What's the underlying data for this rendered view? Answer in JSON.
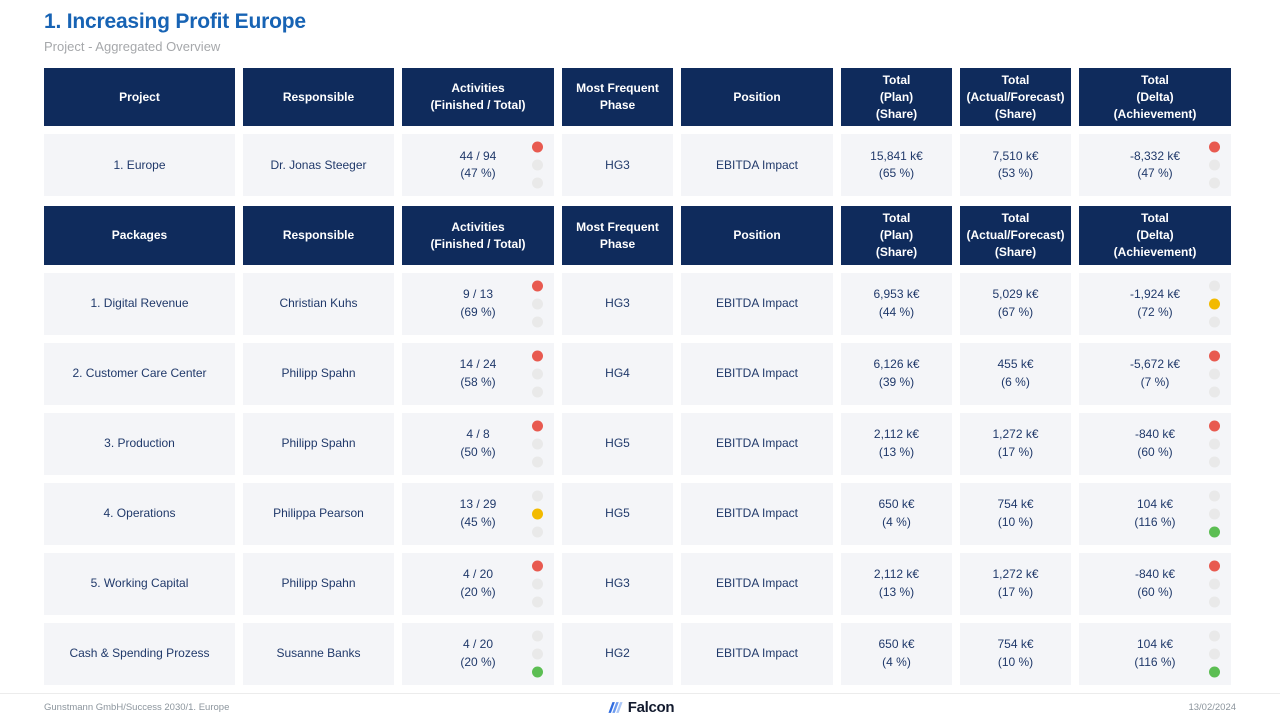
{
  "title": "1. Increasing Profit Europe",
  "subtitle": "Project - Aggregated Overview",
  "colors": {
    "header_bg": "#0F2B5C",
    "title_blue": "#1763B4",
    "status_red": "#E85A50",
    "status_yellow": "#F2BA00",
    "status_green": "#5CBE53",
    "status_off": "#E9E9E9",
    "cell_bg": "#F4F5F8"
  },
  "tables": [
    {
      "headers": [
        "Project",
        "Responsible",
        "Activities\n(Finished / Total)",
        "Most Frequent\nPhase",
        "Position",
        "Total\n(Plan)\n(Share)",
        "Total\n(Actual/Forecast)\n(Share)",
        "Total\n(Delta)\n(Achievement)"
      ],
      "rows": [
        {
          "name": "1. Europe",
          "responsible": "Dr. Jonas Steeger",
          "activities": "44 / 94",
          "activities_share": "(47 %)",
          "activities_light": "red",
          "phase": "HG3",
          "position": "EBITDA Impact",
          "plan": "15,841 k€",
          "plan_share": "(65 %)",
          "actual": "7,510 k€",
          "actual_share": "(53 %)",
          "delta": "-8,332 k€",
          "delta_share": "(47 %)",
          "delta_light": "red"
        }
      ]
    },
    {
      "headers": [
        "Packages",
        "Responsible",
        "Activities\n(Finished / Total)",
        "Most Frequent\nPhase",
        "Position",
        "Total\n(Plan)\n(Share)",
        "Total\n(Actual/Forecast)\n(Share)",
        "Total\n(Delta)\n(Achievement)"
      ],
      "rows": [
        {
          "name": "1. Digital Revenue",
          "responsible": "Christian Kuhs",
          "activities": "9 / 13",
          "activities_share": "(69 %)",
          "activities_light": "red",
          "phase": "HG3",
          "position": "EBITDA Impact",
          "plan": "6,953 k€",
          "plan_share": "(44 %)",
          "actual": "5,029 k€",
          "actual_share": "(67 %)",
          "delta": "-1,924 k€",
          "delta_share": "(72 %)",
          "delta_light": "yellow"
        },
        {
          "name": "2. Customer Care Center",
          "responsible": "Philipp Spahn",
          "activities": "14 / 24",
          "activities_share": "(58 %)",
          "activities_light": "red",
          "phase": "HG4",
          "position": "EBITDA Impact",
          "plan": "6,126 k€",
          "plan_share": "(39 %)",
          "actual": "455 k€",
          "actual_share": "(6 %)",
          "delta": "-5,672 k€",
          "delta_share": "(7 %)",
          "delta_light": "red"
        },
        {
          "name": "3. Production",
          "responsible": "Philipp Spahn",
          "activities": "4 / 8",
          "activities_share": "(50 %)",
          "activities_light": "red",
          "phase": "HG5",
          "position": "EBITDA Impact",
          "plan": "2,112 k€",
          "plan_share": "(13 %)",
          "actual": "1,272 k€",
          "actual_share": "(17 %)",
          "delta": "-840 k€",
          "delta_share": "(60 %)",
          "delta_light": "red"
        },
        {
          "name": "4. Operations",
          "responsible": "Philippa Pearson",
          "activities": "13 / 29",
          "activities_share": "(45 %)",
          "activities_light": "yellow",
          "phase": "HG5",
          "position": "EBITDA Impact",
          "plan": "650 k€",
          "plan_share": "(4 %)",
          "actual": "754 k€",
          "actual_share": "(10 %)",
          "delta": "104 k€",
          "delta_share": "(116 %)",
          "delta_light": "green"
        },
        {
          "name": "5. Working Capital",
          "responsible": "Philipp Spahn",
          "activities": "4 / 20",
          "activities_share": "(20 %)",
          "activities_light": "red",
          "phase": "HG3",
          "position": "EBITDA Impact",
          "plan": "2,112 k€",
          "plan_share": "(13 %)",
          "actual": "1,272 k€",
          "actual_share": "(17 %)",
          "delta": "-840 k€",
          "delta_share": "(60 %)",
          "delta_light": "red"
        },
        {
          "name": "Cash & Spending Prozess",
          "responsible": "Susanne Banks",
          "activities": "4 / 20",
          "activities_share": "(20 %)",
          "activities_light": "green",
          "phase": "HG2",
          "position": "EBITDA Impact",
          "plan": "650 k€",
          "plan_share": "(4 %)",
          "actual": "754 k€",
          "actual_share": "(10 %)",
          "delta": "104 k€",
          "delta_share": "(116 %)",
          "delta_light": "green"
        }
      ]
    }
  ],
  "footer": {
    "left": "Gunstmann GmbH/Success 2030/1. Europe",
    "logo_text": "Falcon",
    "date": "13/02/2024"
  }
}
